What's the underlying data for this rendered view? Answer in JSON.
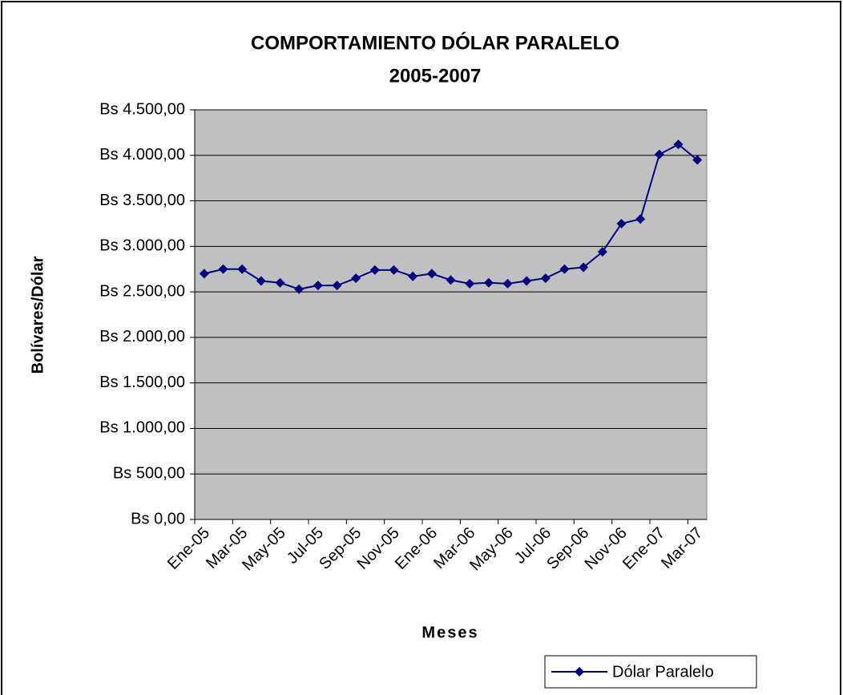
{
  "chart_data": {
    "type": "line",
    "title": [
      "COMPORTAMIENTO DÓLAR PARALELO",
      "2005-2007"
    ],
    "x_label": "Meses",
    "y_label": "Bolívares/Dólar",
    "categories": [
      "Ene-05",
      null,
      "Mar-05",
      null,
      "May-05",
      null,
      "Jul-05",
      null,
      "Sep-05",
      null,
      "Nov-05",
      null,
      "Ene-06",
      null,
      "Mar-06",
      null,
      "May-06",
      null,
      "Jul-06",
      null,
      "Sep-06",
      null,
      "Nov-06",
      null,
      "Ene-07",
      null,
      "Mar-07"
    ],
    "series": [
      {
        "name": "Dólar Paralelo",
        "color": "#000080",
        "values": [
          2700,
          2750,
          2750,
          2620,
          2600,
          2530,
          2570,
          2570,
          2650,
          2740,
          2740,
          2670,
          2700,
          2630,
          2590,
          2600,
          2590,
          2620,
          2650,
          2750,
          2770,
          2940,
          3250,
          3300,
          4010,
          4120,
          3950
        ]
      }
    ],
    "ylim": [
      0,
      4500
    ],
    "yticks": [
      {
        "value": 0,
        "label": "Bs 0,00"
      },
      {
        "value": 500,
        "label": "Bs 500,00"
      },
      {
        "value": 1000,
        "label": "Bs 1.000,00"
      },
      {
        "value": 1500,
        "label": "Bs 1.500,00"
      },
      {
        "value": 2000,
        "label": "Bs 2.000,00"
      },
      {
        "value": 2500,
        "label": "Bs 2.500,00"
      },
      {
        "value": 3000,
        "label": "Bs 3.000,00"
      },
      {
        "value": 3500,
        "label": "Bs 3.500,00"
      },
      {
        "value": 4000,
        "label": "Bs 4.000,00"
      },
      {
        "value": 4500,
        "label": "Bs 4.500,00"
      }
    ],
    "grid": true,
    "plot_background": "#c0c0c0",
    "legend": "bottom-right"
  }
}
